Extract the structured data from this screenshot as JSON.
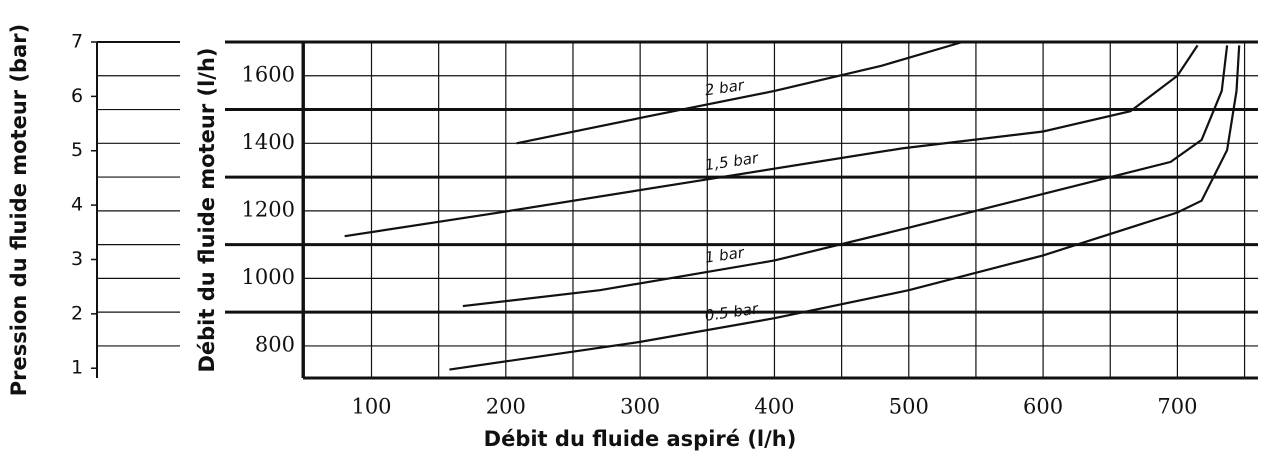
{
  "chart_data": {
    "type": "line",
    "xlabel": "Débit du fluide aspiré (l/h)",
    "ylabel": "Débit du fluide moteur (l/h)",
    "y2label": "Pression du fluide moteur (bar)",
    "xlim": [
      49,
      760
    ],
    "xticks": [
      100,
      200,
      300,
      400,
      500,
      600,
      700
    ],
    "xminor": [
      50,
      150,
      250,
      350,
      450,
      550,
      650,
      750
    ],
    "ylim": [
      705,
      1700
    ],
    "yticks": [
      800,
      1000,
      1200,
      1400,
      1600
    ],
    "yminor": [
      900,
      1100,
      1300,
      1500,
      1700
    ],
    "y2lim": [
      0.82,
      7
    ],
    "y2ticks": [
      1,
      2,
      3,
      4,
      5,
      6,
      7
    ],
    "grid": true,
    "color": "#111111",
    "series": [
      {
        "name": "2 bar",
        "x": [
          208,
          300,
          400,
          480,
          540
        ],
        "values": [
          1400,
          1475,
          1555,
          1630,
          1700
        ]
      },
      {
        "name": "1,5 bar",
        "x": [
          80,
          195,
          345,
          495,
          600,
          665,
          700,
          715
        ],
        "values": [
          1125,
          1195,
          1290,
          1385,
          1435,
          1495,
          1600,
          1690
        ]
      },
      {
        "name": "1 bar",
        "x": [
          168,
          270,
          400,
          500,
          600,
          695,
          718,
          733,
          737
        ],
        "values": [
          918,
          965,
          1053,
          1150,
          1250,
          1345,
          1410,
          1555,
          1690
        ]
      },
      {
        "name": "0.5 bar",
        "x": [
          158,
          300,
          400,
          500,
          600,
          700,
          718,
          737,
          744,
          746
        ],
        "values": [
          730,
          812,
          882,
          965,
          1068,
          1195,
          1230,
          1380,
          1555,
          1690
        ]
      }
    ]
  }
}
